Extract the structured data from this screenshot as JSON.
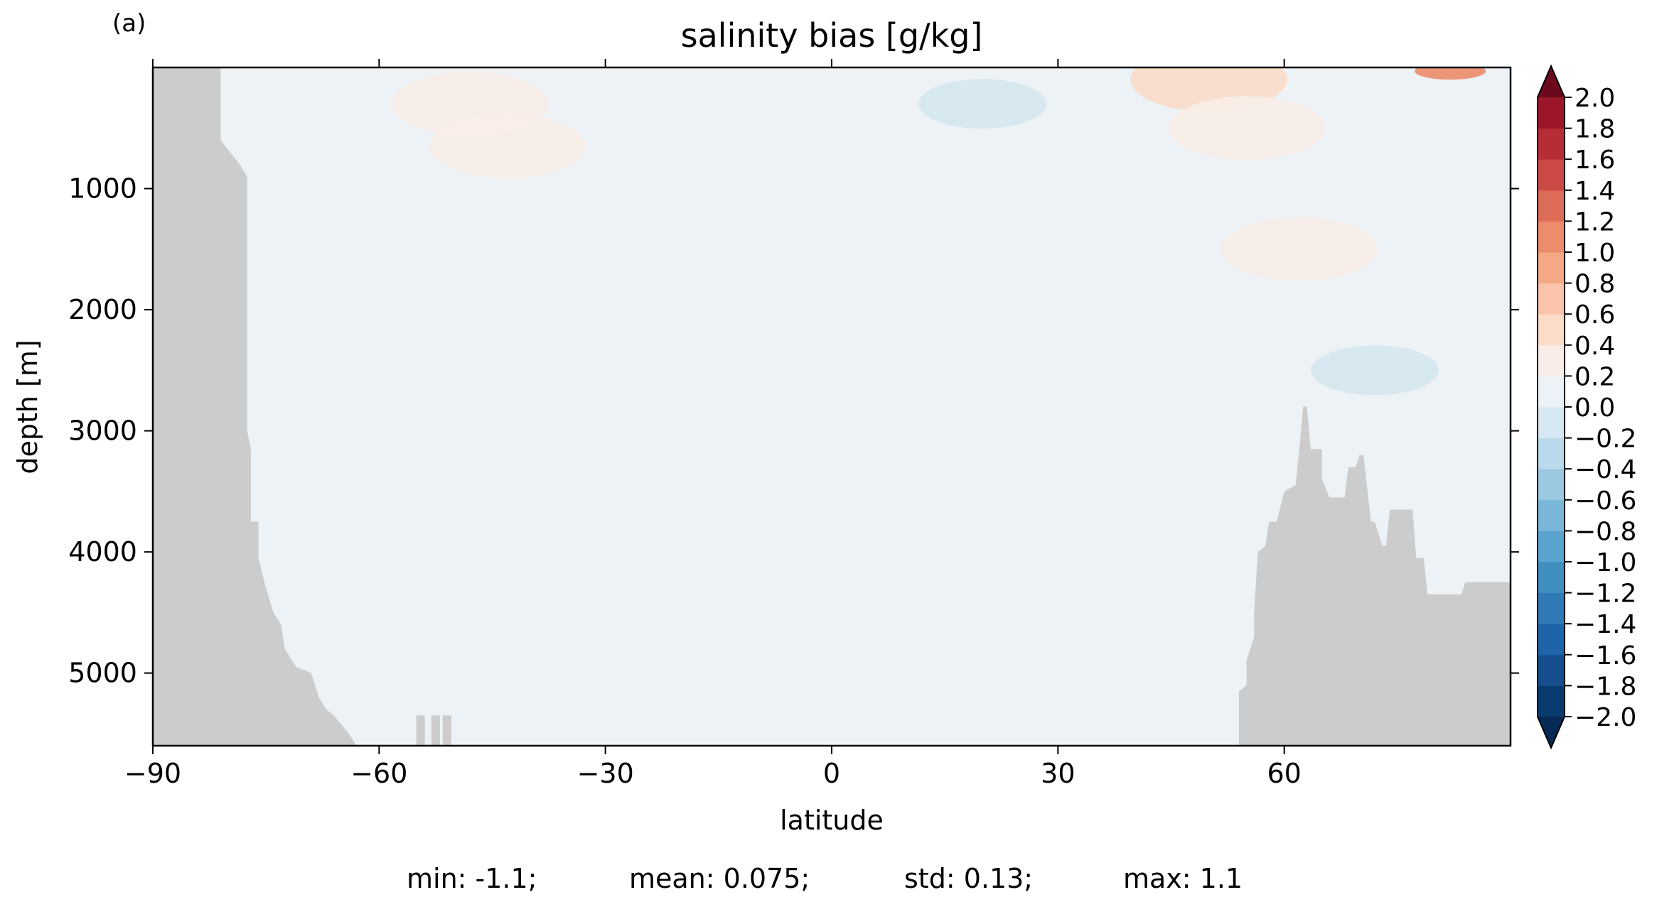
{
  "panel_label": "(a)",
  "chart_data": {
    "type": "heatmap",
    "title": "salinity bias [g/kg]",
    "xlabel": "latitude",
    "ylabel": "depth [m]",
    "xlim": [
      -90,
      90
    ],
    "ylim": [
      5600,
      0
    ],
    "x_ticks": [
      -90,
      -60,
      -30,
      0,
      30,
      60
    ],
    "x_tick_labels": [
      "−90",
      "−60",
      "−30",
      "0",
      "30",
      "60"
    ],
    "y_ticks": [
      1000,
      2000,
      3000,
      4000,
      5000
    ],
    "y_tick_labels": [
      "1000",
      "2000",
      "3000",
      "4000",
      "5000"
    ],
    "colorbar": {
      "levels": [
        -2.0,
        -1.8,
        -1.6,
        -1.4,
        -1.2,
        -1.0,
        -0.8,
        -0.6,
        -0.4,
        -0.2,
        0.0,
        0.2,
        0.4,
        0.6,
        0.8,
        1.0,
        1.2,
        1.4,
        1.6,
        1.8,
        2.0
      ],
      "tick_labels": [
        "−2.0",
        "−1.8",
        "−1.6",
        "−1.4",
        "−1.2",
        "−1.0",
        "−0.8",
        "−0.6",
        "−0.4",
        "−0.2",
        "0.0",
        "0.2",
        "0.4",
        "0.6",
        "0.8",
        "1.0",
        "1.2",
        "1.4",
        "1.6",
        "1.8",
        "2.0"
      ],
      "colors": [
        "#0a3b6f",
        "#154e8d",
        "#1f63a8",
        "#2f79b5",
        "#3f8fc0",
        "#5aa3cd",
        "#79b6d8",
        "#9bc9e1",
        "#bad9ea",
        "#d6e7f1",
        "#ecf2f5",
        "#f8ede8",
        "#fbdcc9",
        "#f9c4aa",
        "#f4a886",
        "#eb8c6b",
        "#dc6b57",
        "#cc4a45",
        "#b72d36",
        "#9b1629"
      ],
      "extend_low_color": "#052a55",
      "extend_high_color": "#6b0a1f",
      "extend": "both"
    },
    "land_color": "#cccccc",
    "background_field_level": "0.0 to 0.2",
    "south_bathymetry": [
      [
        -90,
        0
      ],
      [
        -81,
        0
      ],
      [
        -81,
        600
      ],
      [
        -78.5,
        800
      ],
      [
        -77.5,
        900
      ],
      [
        -77.5,
        3000
      ],
      [
        -77,
        3150
      ],
      [
        -77,
        3750
      ],
      [
        -76,
        3750
      ],
      [
        -76,
        4050
      ],
      [
        -75,
        4300
      ],
      [
        -74,
        4500
      ],
      [
        -73,
        4600
      ],
      [
        -72.5,
        4800
      ],
      [
        -71,
        4950
      ],
      [
        -69,
        5000
      ],
      [
        -68,
        5200
      ],
      [
        -67,
        5300
      ],
      [
        -66,
        5350
      ],
      [
        -64,
        5500
      ],
      [
        -63,
        5600
      ]
    ],
    "south_small_ridges": [
      [
        -54.5,
        5350
      ],
      [
        -52.5,
        5350
      ],
      [
        -51,
        5350
      ]
    ],
    "north_bathymetry": [
      [
        54,
        5600
      ],
      [
        54,
        5150
      ],
      [
        55,
        5100
      ],
      [
        55,
        4900
      ],
      [
        56,
        4700
      ],
      [
        56,
        4500
      ],
      [
        56.5,
        4000
      ],
      [
        57.5,
        3950
      ],
      [
        58,
        3750
      ],
      [
        59,
        3750
      ],
      [
        60,
        3500
      ],
      [
        61.5,
        3450
      ],
      [
        62,
        3150
      ],
      [
        62.5,
        2800
      ],
      [
        63,
        2800
      ],
      [
        63.5,
        3150
      ],
      [
        65,
        3150
      ],
      [
        65,
        3400
      ],
      [
        66,
        3550
      ],
      [
        68,
        3550
      ],
      [
        68.5,
        3300
      ],
      [
        69.5,
        3300
      ],
      [
        70,
        3200
      ],
      [
        70.5,
        3200
      ],
      [
        71.5,
        3750
      ],
      [
        72,
        3750
      ],
      [
        73,
        3950
      ],
      [
        73.5,
        3950
      ],
      [
        74,
        3650
      ],
      [
        75,
        3650
      ],
      [
        77,
        3650
      ],
      [
        77.5,
        4050
      ],
      [
        78.5,
        4050
      ],
      [
        79,
        4350
      ],
      [
        83.5,
        4350
      ],
      [
        84,
        4250
      ],
      [
        90,
        4250
      ],
      [
        90,
        5600
      ]
    ],
    "anomalies": [
      {
        "lat": -48,
        "depth": 300,
        "value": 0.3
      },
      {
        "lat": -43,
        "depth": 650,
        "value": 0.3
      },
      {
        "lat": 50,
        "depth": 100,
        "value": 0.5
      },
      {
        "lat": 55,
        "depth": 500,
        "value": 0.3
      },
      {
        "lat": 62,
        "depth": 1500,
        "value": 0.25
      },
      {
        "lat": 82,
        "depth": 30,
        "value": 1.1
      },
      {
        "lat": 20,
        "depth": 300,
        "value": -0.1
      },
      {
        "lat": 72,
        "depth": 2500,
        "value": -0.05
      }
    ]
  },
  "stats": {
    "min": "min: -1.1;",
    "mean": "mean: 0.075;",
    "std": "std: 0.13;",
    "max": "max: 1.1"
  }
}
